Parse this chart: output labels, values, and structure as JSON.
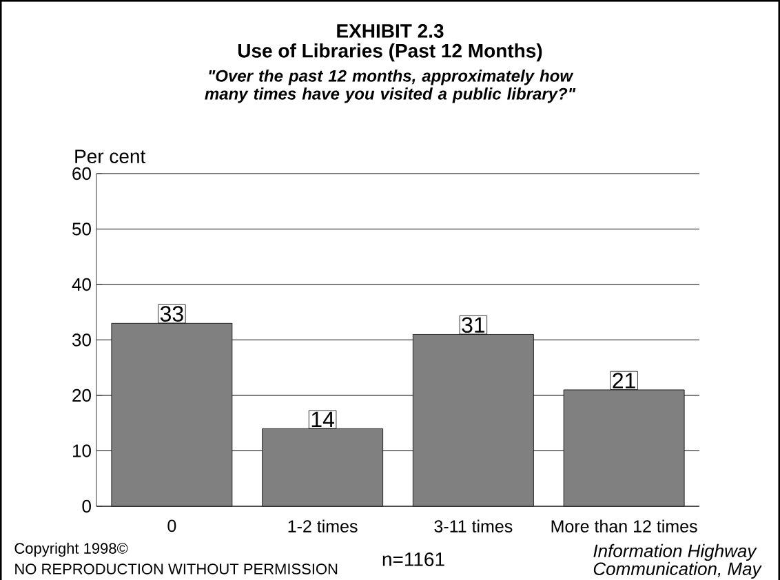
{
  "chart_data": {
    "type": "bar",
    "title": "EXHIBIT 2.3",
    "subtitle": "Use of Libraries (Past 12 Months)",
    "ylabel": "Per cent",
    "categories": [
      "0",
      "1-2 times",
      "3-11 times",
      "More than 12 times"
    ],
    "values": [
      33,
      14,
      31,
      21
    ],
    "color": "#808080",
    "data_labels": true,
    "ylim": [
      0,
      60
    ],
    "yticks": [
      0,
      10,
      20,
      30,
      40,
      50,
      60
    ],
    "grid": "y",
    "annotations": [
      "\"Over the past 12 months, approximately how many times have you visited a public library?\"",
      "Copyright 1998©",
      "NO REPRODUCTION WITHOUT PERMISSION",
      "n=1161",
      "Information Highway",
      "Communication, May"
    ]
  }
}
